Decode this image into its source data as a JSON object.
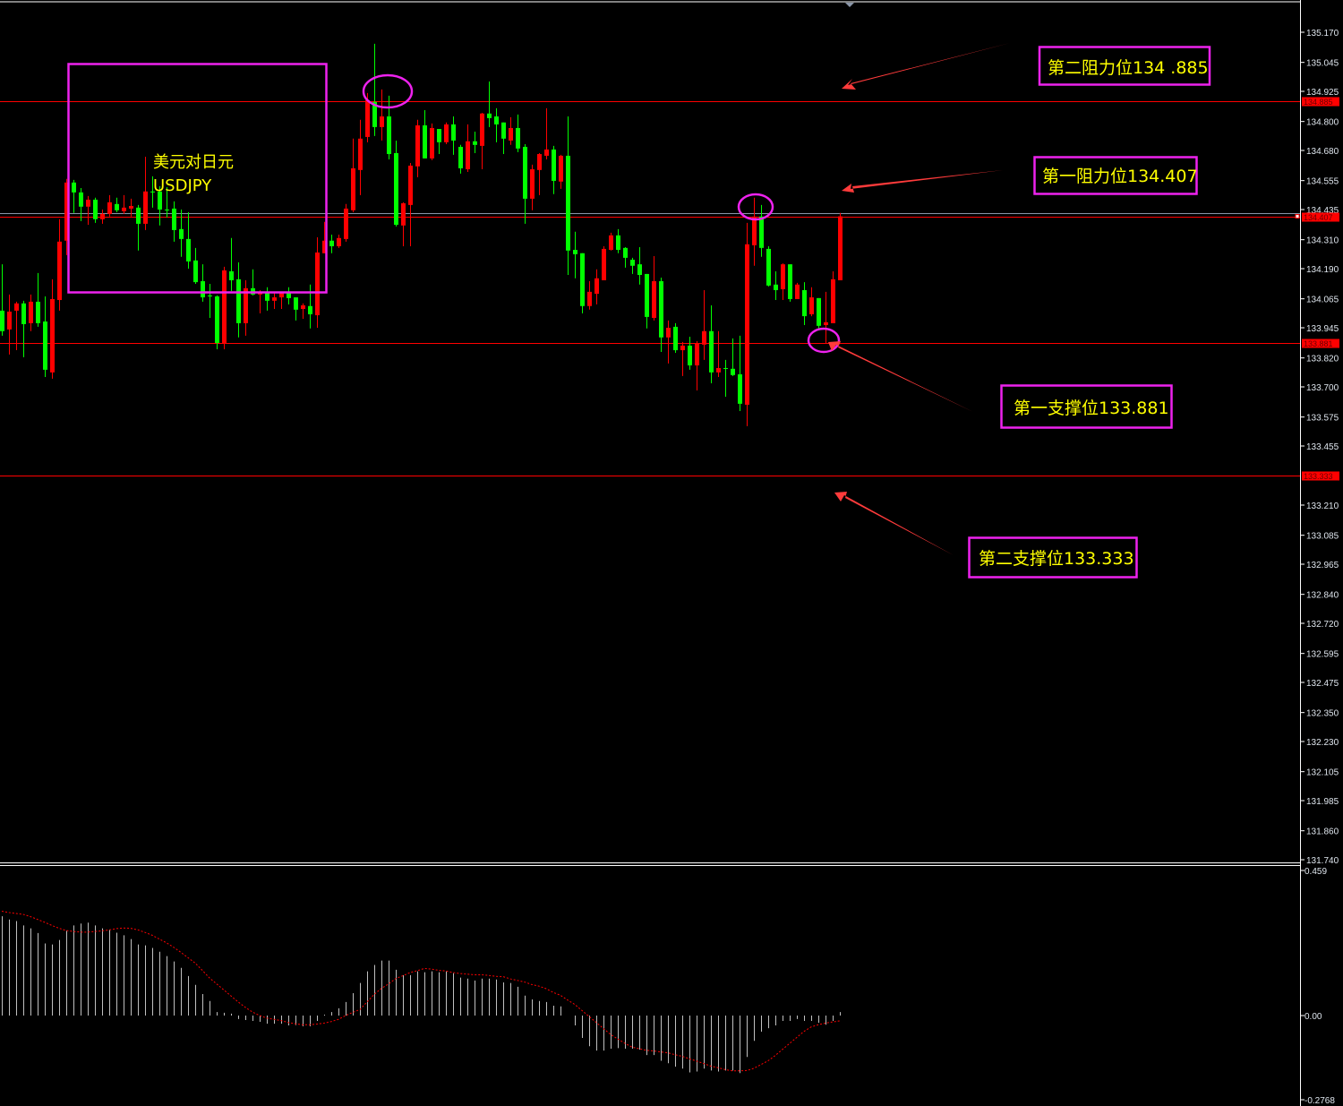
{
  "chart_data": {
    "type": "candlestick",
    "symbol_label": [
      "美元对日元",
      "USDJPY"
    ],
    "colors": {
      "up": "#ff0000",
      "down": "#00ff00",
      "background": "#000000",
      "axis": "#ffffff",
      "level_line": "#ff0000",
      "annotation_box": "#ee22ee",
      "annotation_text": "#ffff00",
      "arrow": "#ff3b3b",
      "macd_hist": "#c0c0c0",
      "macd_signal": "#ff0000"
    },
    "price_axis": {
      "ylim": [
        131.74,
        135.17
      ],
      "ticks": [
        "135.170",
        "135.045",
        "134.925",
        "134.800",
        "134.680",
        "134.555",
        "134.435",
        "134.310",
        "134.190",
        "134.065",
        "133.945",
        "133.820",
        "133.700",
        "133.575",
        "133.455",
        "133.210",
        "133.085",
        "132.965",
        "132.840",
        "132.720",
        "132.595",
        "132.475",
        "132.350",
        "132.230",
        "132.105",
        "131.985",
        "131.860",
        "131.740"
      ]
    },
    "levels": [
      {
        "price": 134.885,
        "label": "134.885",
        "annotation": "第二阻力位134 .885"
      },
      {
        "price": 134.407,
        "label": "134.407",
        "annotation": "第一阻力位134.407"
      },
      {
        "price": 133.881,
        "label": "133.881",
        "annotation": "第一支撑位133.881"
      },
      {
        "price": 133.333,
        "label": "133.333",
        "annotation": "第二支撑位133.333"
      }
    ],
    "current_price": 134.407,
    "ohlc": [
      [
        134.016,
        134.208,
        133.912,
        133.931
      ],
      [
        133.938,
        134.083,
        133.834,
        134.012
      ],
      [
        134.016,
        134.053,
        133.852,
        134.046
      ],
      [
        134.046,
        134.057,
        133.823,
        133.96
      ],
      [
        133.964,
        134.083,
        133.931,
        134.053
      ],
      [
        134.053,
        134.172,
        133.949,
        133.964
      ],
      [
        133.971,
        134.075,
        133.741,
        133.771
      ],
      [
        133.76,
        134.146,
        133.734,
        134.064
      ],
      [
        134.06,
        134.395,
        134.016,
        134.302
      ],
      [
        134.306,
        134.562,
        134.246,
        134.547
      ],
      [
        134.547,
        134.558,
        134.421,
        134.506
      ],
      [
        134.506,
        134.524,
        134.387,
        134.447
      ],
      [
        134.447,
        134.491,
        134.372,
        134.476
      ],
      [
        134.476,
        134.484,
        134.38,
        134.395
      ],
      [
        134.395,
        134.435,
        134.376,
        134.417
      ],
      [
        134.417,
        134.495,
        134.406,
        134.465
      ],
      [
        134.458,
        134.484,
        134.424,
        134.432
      ],
      [
        134.428,
        134.495,
        134.417,
        134.443
      ],
      [
        134.439,
        134.48,
        134.406,
        134.45
      ],
      [
        134.443,
        134.454,
        134.265,
        134.376
      ],
      [
        134.376,
        134.654,
        134.35,
        134.51
      ],
      [
        134.51,
        134.573,
        134.443,
        134.506
      ],
      [
        134.51,
        134.532,
        134.369,
        134.435
      ],
      [
        134.435,
        134.528,
        134.402,
        134.432
      ],
      [
        134.439,
        134.469,
        134.302,
        134.35
      ],
      [
        134.354,
        134.435,
        134.239,
        134.313
      ],
      [
        134.313,
        134.424,
        134.19,
        134.22
      ],
      [
        134.224,
        134.276,
        134.127,
        134.134
      ],
      [
        134.138,
        134.208,
        134.053,
        134.071
      ],
      [
        134.079,
        134.127,
        133.986,
        134.075
      ],
      [
        134.075,
        134.079,
        133.856,
        133.882
      ],
      [
        133.882,
        134.198,
        133.856,
        134.183
      ],
      [
        134.179,
        134.317,
        134.097,
        134.142
      ],
      [
        134.146,
        134.216,
        133.905,
        133.964
      ],
      [
        133.964,
        134.142,
        133.912,
        134.109
      ],
      [
        134.109,
        134.187,
        134.079,
        134.083
      ],
      [
        134.083,
        134.101,
        134.005,
        134.09
      ],
      [
        134.09,
        134.113,
        134.016,
        134.057
      ],
      [
        134.057,
        134.09,
        134.023,
        134.071
      ],
      [
        134.071,
        134.09,
        134.023,
        134.09
      ],
      [
        134.09,
        134.113,
        134.042,
        134.068
      ],
      [
        134.071,
        134.071,
        133.975,
        134.02
      ],
      [
        134.023,
        134.046,
        133.982,
        134.038
      ],
      [
        134.035,
        134.124,
        133.942,
        134.001
      ],
      [
        133.997,
        134.32,
        133.945,
        134.257
      ],
      [
        134.254,
        134.384,
        134.254,
        134.306
      ],
      [
        134.306,
        134.331,
        134.254,
        134.283
      ],
      [
        134.283,
        134.331,
        134.276,
        134.317
      ],
      [
        134.313,
        134.458,
        134.302,
        134.439
      ],
      [
        134.432,
        134.729,
        134.424,
        134.606
      ],
      [
        134.599,
        134.807,
        134.495,
        134.729
      ],
      [
        134.736,
        134.918,
        134.714,
        134.888
      ],
      [
        134.881,
        135.122,
        134.74,
        134.777
      ],
      [
        134.777,
        134.933,
        134.721,
        134.821
      ],
      [
        134.821,
        134.907,
        134.643,
        134.665
      ],
      [
        134.669,
        134.721,
        134.365,
        134.372
      ],
      [
        134.369,
        134.465,
        134.283,
        134.461
      ],
      [
        134.454,
        134.628,
        134.283,
        134.617
      ],
      [
        134.614,
        134.807,
        134.569,
        134.784
      ],
      [
        134.784,
        134.847,
        134.647,
        134.647
      ],
      [
        134.647,
        134.792,
        134.64,
        134.773
      ],
      [
        134.769,
        134.769,
        134.665,
        134.714
      ],
      [
        134.714,
        134.796,
        134.706,
        134.788
      ],
      [
        134.788,
        134.821,
        134.662,
        134.721
      ],
      [
        134.695,
        134.703,
        134.584,
        134.606
      ],
      [
        134.602,
        134.788,
        134.591,
        134.718
      ],
      [
        134.718,
        134.758,
        134.669,
        134.703
      ],
      [
        134.699,
        134.836,
        134.602,
        134.833
      ],
      [
        134.833,
        134.966,
        134.777,
        134.814
      ],
      [
        134.821,
        134.855,
        134.714,
        134.788
      ],
      [
        134.796,
        134.796,
        134.665,
        134.729
      ],
      [
        134.721,
        134.818,
        134.703,
        134.773
      ],
      [
        134.773,
        134.829,
        134.673,
        134.688
      ],
      [
        134.695,
        134.706,
        134.376,
        134.48
      ],
      [
        134.48,
        134.621,
        134.432,
        134.602
      ],
      [
        134.599,
        134.669,
        134.495,
        134.665
      ],
      [
        134.658,
        134.855,
        134.643,
        134.684
      ],
      [
        134.684,
        134.699,
        134.499,
        134.554
      ],
      [
        134.551,
        134.662,
        134.521,
        134.658
      ],
      [
        134.658,
        134.821,
        134.164,
        134.265
      ],
      [
        134.268,
        134.343,
        134.15,
        134.25
      ],
      [
        134.254,
        134.254,
        134.005,
        134.035
      ],
      [
        134.035,
        134.138,
        134.02,
        134.094
      ],
      [
        134.086,
        134.187,
        134.042,
        134.15
      ],
      [
        134.142,
        134.283,
        134.142,
        134.272
      ],
      [
        134.268,
        134.339,
        134.265,
        134.328
      ],
      [
        134.328,
        134.354,
        134.254,
        134.268
      ],
      [
        134.276,
        134.279,
        134.194,
        134.235
      ],
      [
        134.227,
        134.235,
        134.168,
        134.202
      ],
      [
        134.208,
        134.279,
        134.124,
        134.164
      ],
      [
        134.168,
        134.168,
        133.942,
        133.99
      ],
      [
        133.986,
        134.242,
        133.975,
        134.138
      ],
      [
        134.138,
        134.153,
        133.845,
        133.905
      ],
      [
        133.905,
        133.975,
        133.797,
        133.945
      ],
      [
        133.949,
        133.964,
        133.841,
        133.852
      ],
      [
        133.852,
        133.886,
        133.745,
        133.871
      ],
      [
        133.871,
        133.908,
        133.771,
        133.789
      ],
      [
        133.789,
        133.89,
        133.685,
        133.882
      ],
      [
        133.875,
        134.101,
        133.812,
        133.931
      ],
      [
        133.931,
        134.038,
        133.715,
        133.76
      ],
      [
        133.76,
        133.931,
        133.741,
        133.778
      ],
      [
        133.778,
        133.812,
        133.659,
        133.775
      ],
      [
        133.775,
        133.901,
        133.745,
        133.749
      ],
      [
        133.752,
        133.912,
        133.6,
        133.63
      ],
      [
        133.626,
        134.38,
        133.537,
        134.291
      ],
      [
        134.287,
        134.484,
        134.202,
        134.406
      ],
      [
        134.406,
        134.454,
        134.239,
        134.276
      ],
      [
        134.272,
        134.283,
        134.116,
        134.12
      ],
      [
        134.124,
        134.179,
        134.06,
        134.101
      ],
      [
        134.105,
        134.212,
        134.06,
        134.208
      ],
      [
        134.208,
        134.208,
        134.053,
        134.064
      ],
      [
        134.064,
        134.131,
        134.064,
        134.124
      ],
      [
        134.101,
        134.134,
        133.956,
        133.993
      ],
      [
        134.001,
        134.113,
        133.993,
        134.071
      ],
      [
        134.068,
        134.068,
        133.942,
        133.953
      ],
      [
        133.956,
        134.094,
        133.882,
        133.968
      ],
      [
        133.964,
        134.179,
        133.964,
        134.146
      ],
      [
        134.142,
        134.421,
        134.142,
        134.407
      ]
    ],
    "macd": {
      "ylim": [
        -0.2768,
        0.459
      ],
      "ticks": [
        "0.459",
        "0.00",
        "-0.2768"
      ],
      "histogram": [
        0.314,
        0.304,
        0.299,
        0.285,
        0.276,
        0.261,
        0.228,
        0.225,
        0.239,
        0.268,
        0.285,
        0.291,
        0.294,
        0.285,
        0.276,
        0.271,
        0.262,
        0.254,
        0.242,
        0.225,
        0.222,
        0.214,
        0.202,
        0.188,
        0.171,
        0.151,
        0.125,
        0.097,
        0.068,
        0.046,
        0.011,
        0.009,
        0.006,
        -0.011,
        -0.014,
        -0.017,
        -0.02,
        -0.026,
        -0.026,
        -0.026,
        -0.031,
        -0.03,
        -0.034,
        -0.034,
        -0.017,
        0.003,
        0.011,
        0.023,
        0.043,
        0.071,
        0.103,
        0.14,
        0.16,
        0.174,
        0.174,
        0.145,
        0.128,
        0.128,
        0.14,
        0.137,
        0.14,
        0.137,
        0.14,
        0.134,
        0.12,
        0.117,
        0.111,
        0.117,
        0.117,
        0.114,
        0.105,
        0.103,
        0.091,
        0.063,
        0.051,
        0.046,
        0.043,
        0.031,
        0.029,
        0.0,
        -0.031,
        -0.071,
        -0.097,
        -0.111,
        -0.111,
        -0.105,
        -0.103,
        -0.105,
        -0.105,
        -0.108,
        -0.125,
        -0.125,
        -0.143,
        -0.151,
        -0.162,
        -0.168,
        -0.18,
        -0.177,
        -0.168,
        -0.174,
        -0.177,
        -0.174,
        -0.174,
        -0.182,
        -0.131,
        -0.08,
        -0.051,
        -0.04,
        -0.031,
        -0.017,
        -0.017,
        -0.011,
        -0.017,
        -0.017,
        -0.023,
        -0.029,
        -0.017,
        0.011
      ],
      "signal": [
        0.33,
        0.326,
        0.323,
        0.32,
        0.313,
        0.304,
        0.295,
        0.285,
        0.276,
        0.269,
        0.266,
        0.264,
        0.264,
        0.266,
        0.268,
        0.271,
        0.275,
        0.277,
        0.276,
        0.271,
        0.263,
        0.254,
        0.242,
        0.23,
        0.216,
        0.2,
        0.183,
        0.166,
        0.143,
        0.119,
        0.1,
        0.081,
        0.062,
        0.043,
        0.026,
        0.011,
        0.0,
        -0.008,
        -0.012,
        -0.016,
        -0.022,
        -0.026,
        -0.029,
        -0.029,
        -0.027,
        -0.024,
        -0.019,
        -0.012,
        0.0,
        0.01,
        0.019,
        0.043,
        0.067,
        0.086,
        0.1,
        0.117,
        0.126,
        0.136,
        0.142,
        0.149,
        0.147,
        0.143,
        0.141,
        0.136,
        0.133,
        0.131,
        0.129,
        0.129,
        0.127,
        0.124,
        0.123,
        0.116,
        0.111,
        0.106,
        0.098,
        0.093,
        0.085,
        0.073,
        0.064,
        0.049,
        0.035,
        0.016,
        -0.003,
        -0.022,
        -0.041,
        -0.06,
        -0.074,
        -0.088,
        -0.1,
        -0.105,
        -0.11,
        -0.112,
        -0.115,
        -0.118,
        -0.124,
        -0.129,
        -0.137,
        -0.144,
        -0.152,
        -0.16,
        -0.165,
        -0.171,
        -0.175,
        -0.175,
        -0.174,
        -0.167,
        -0.155,
        -0.143,
        -0.126,
        -0.107,
        -0.088,
        -0.069,
        -0.05,
        -0.036,
        -0.029,
        -0.024,
        -0.02,
        -0.017
      ]
    }
  }
}
